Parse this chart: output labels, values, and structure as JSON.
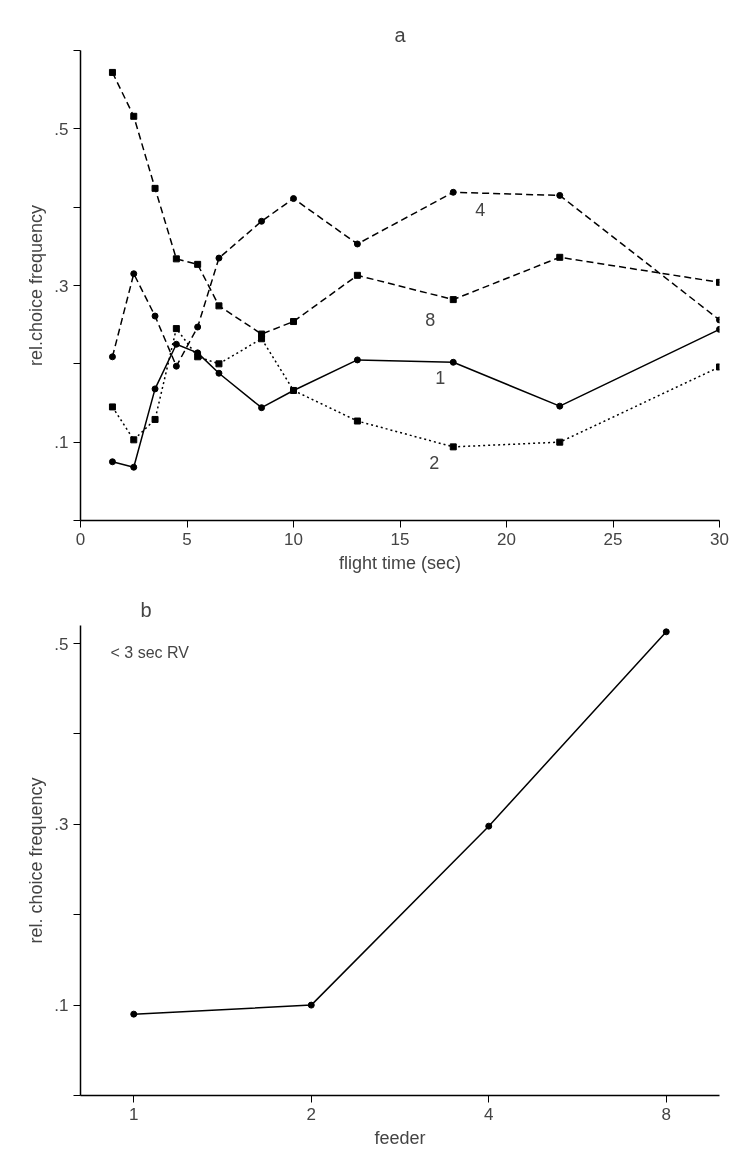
{
  "chart_data": [
    {
      "type": "line",
      "title": "a",
      "xlabel": "flight time (sec)",
      "ylabel": "rel.choice frequency",
      "x": [
        1.5,
        2.5,
        3.5,
        4.5,
        5.5,
        6.5,
        8.5,
        10,
        13,
        17.5,
        22.5,
        30
      ],
      "series": [
        {
          "name": "1",
          "color": "#000000",
          "line_style": "solid",
          "marker": "circle",
          "values": [
            0.075,
            0.068,
            0.168,
            0.225,
            0.214,
            0.188,
            0.144,
            0.166,
            0.205,
            0.202,
            0.146,
            0.244
          ]
        },
        {
          "name": "2",
          "color": "#000000",
          "line_style": "dotted",
          "marker": "square",
          "values": [
            0.145,
            0.103,
            0.129,
            0.245,
            0.209,
            0.2,
            0.232,
            0.166,
            0.127,
            0.094,
            0.1,
            0.196
          ]
        },
        {
          "name": "4",
          "color": "#000000",
          "line_style": "dashed",
          "marker": "circle",
          "values": [
            0.209,
            0.315,
            0.261,
            0.197,
            0.247,
            0.335,
            0.382,
            0.411,
            0.353,
            0.419,
            0.415,
            0.256
          ]
        },
        {
          "name": "8",
          "color": "#000000",
          "line_style": "dashed",
          "marker": "square",
          "values": [
            0.572,
            0.516,
            0.424,
            0.334,
            0.327,
            0.274,
            0.238,
            0.254,
            0.313,
            0.282,
            0.336,
            0.304
          ]
        }
      ],
      "xlim": [
        0,
        30
      ],
      "xticks": [
        0,
        5,
        10,
        15,
        20,
        25,
        30
      ],
      "ylim": [
        0,
        0.6
      ],
      "yticks": [
        {
          "value": 0,
          "label": null
        },
        {
          "value": 0.1,
          "label": ".1"
        },
        {
          "value": 0.2,
          "label": null
        },
        {
          "value": 0.3,
          "label": ".3"
        },
        {
          "value": 0.4,
          "label": null
        },
        {
          "value": 0.5,
          "label": ".5"
        },
        {
          "value": 0.6,
          "label": null
        }
      ],
      "grid": false
    },
    {
      "type": "line",
      "title": "b",
      "xlabel": "feeder",
      "ylabel": "rel. choice frequency",
      "categories": [
        "1",
        "2",
        "4",
        "8"
      ],
      "series": [
        {
          "color": "#000000",
          "line_style": "solid",
          "marker": "circle",
          "values": [
            0.09,
            0.1,
            0.298,
            0.513
          ]
        }
      ],
      "ylim": [
        0,
        0.52
      ],
      "yticks": [
        {
          "value": 0,
          "label": null
        },
        {
          "value": 0.1,
          "label": ".1"
        },
        {
          "value": 0.2,
          "label": null
        },
        {
          "value": 0.3,
          "label": ".3"
        },
        {
          "value": 0.4,
          "label": null
        },
        {
          "value": 0.5,
          "label": ".5"
        }
      ],
      "annotations": [
        "< 3 sec RV"
      ],
      "grid": false
    }
  ]
}
